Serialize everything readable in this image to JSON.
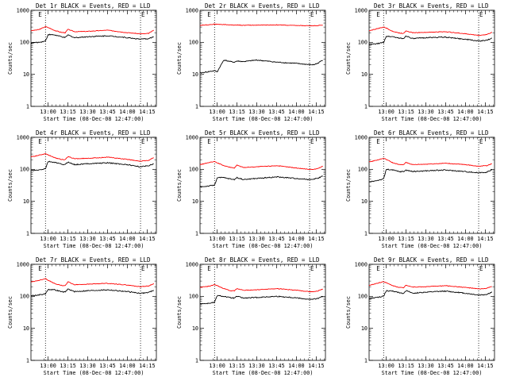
{
  "chart_data": [
    {
      "type": "line",
      "title": "Det 1r BLACK = Events, RED = LLD",
      "xlabel": "Start Time (08-Dec-08 12:47:00)",
      "ylabel": "Counts/sec",
      "yscale": "log",
      "ylim": [
        1,
        1000
      ],
      "xticks": [
        "13:00",
        "13:15",
        "13:30",
        "13:45",
        "14:00",
        "14:15"
      ],
      "yticks": [
        "1",
        "10",
        "100",
        "1000"
      ],
      "markers": [
        "E",
        "E"
      ],
      "x": [
        "12:47",
        "12:53",
        "12:58",
        "13:00",
        "13:05",
        "13:10",
        "13:13",
        "13:15",
        "13:20",
        "13:30",
        "13:45",
        "14:00",
        "14:10",
        "14:13",
        "14:16",
        "14:20"
      ],
      "series": [
        {
          "color": "#ff0000",
          "values": [
            230,
            250,
            310,
            290,
            235,
            205,
            200,
            255,
            215,
            220,
            240,
            200,
            185,
            185,
            190,
            240
          ]
        },
        {
          "color": "#000000",
          "values": [
            95,
            100,
            110,
            175,
            170,
            150,
            140,
            170,
            140,
            150,
            160,
            140,
            125,
            128,
            130,
            150
          ]
        }
      ]
    },
    {
      "type": "line",
      "title": "Det 2r BLACK = Events, RED = LLD",
      "xlabel": "Start Time (08-Dec-08 12:47:00)",
      "ylabel": "Counts/sec",
      "yscale": "log",
      "ylim": [
        1,
        1000
      ],
      "xticks": [
        "13:00",
        "13:15",
        "13:30",
        "13:45",
        "14:00",
        "14:15"
      ],
      "yticks": [
        "1",
        "10",
        "100",
        "1000"
      ],
      "markers": [
        "E",
        "E"
      ],
      "x": [
        "12:47",
        "12:53",
        "12:58",
        "13:00",
        "13:05",
        "13:10",
        "13:13",
        "13:15",
        "13:20",
        "13:30",
        "13:45",
        "14:00",
        "14:10",
        "14:13",
        "14:16",
        "14:20"
      ],
      "series": [
        {
          "color": "#ff0000",
          "values": [
            340,
            355,
            370,
            365,
            360,
            350,
            345,
            350,
            340,
            345,
            350,
            335,
            330,
            330,
            335,
            345
          ]
        },
        {
          "color": "#000000",
          "values": [
            11,
            12,
            13,
            12,
            28,
            25,
            24,
            26,
            25,
            28,
            24,
            22,
            20,
            20,
            22,
            28
          ]
        }
      ]
    },
    {
      "type": "line",
      "title": "Det 3r BLACK = Events, RED = LLD",
      "xlabel": "Start Time (08-Dec-08 12:47:00)",
      "ylabel": "Counts/sec",
      "yscale": "log",
      "ylim": [
        1,
        1000
      ],
      "xticks": [
        "13:00",
        "13:15",
        "13:30",
        "13:45",
        "14:00",
        "14:15"
      ],
      "yticks": [
        "1",
        "10",
        "100",
        "1000"
      ],
      "markers": [
        "E",
        "E"
      ],
      "x": [
        "12:47",
        "12:53",
        "12:58",
        "13:00",
        "13:05",
        "13:10",
        "13:13",
        "13:15",
        "13:20",
        "13:30",
        "13:45",
        "14:00",
        "14:10",
        "14:13",
        "14:16",
        "14:20"
      ],
      "series": [
        {
          "color": "#ff0000",
          "values": [
            230,
            265,
            300,
            280,
            220,
            195,
            190,
            230,
            200,
            205,
            215,
            185,
            165,
            170,
            175,
            205
          ]
        },
        {
          "color": "#000000",
          "values": [
            85,
            90,
            100,
            155,
            150,
            135,
            130,
            160,
            130,
            140,
            145,
            125,
            110,
            112,
            115,
            135
          ]
        }
      ]
    },
    {
      "type": "line",
      "title": "Det 4r BLACK = Events, RED = LLD",
      "xlabel": "Start Time (08-Dec-08 12:47:00)",
      "ylabel": "Counts/sec",
      "yscale": "log",
      "ylim": [
        1,
        1000
      ],
      "xticks": [
        "13:00",
        "13:15",
        "13:30",
        "13:45",
        "14:00",
        "14:15"
      ],
      "yticks": [
        "1",
        "10",
        "100",
        "1000"
      ],
      "markers": [
        "E",
        "E"
      ],
      "x": [
        "12:47",
        "12:53",
        "12:58",
        "13:00",
        "13:05",
        "13:10",
        "13:13",
        "13:15",
        "13:20",
        "13:30",
        "13:45",
        "14:00",
        "14:10",
        "14:13",
        "14:16",
        "14:20"
      ],
      "series": [
        {
          "color": "#ff0000",
          "values": [
            245,
            275,
            310,
            285,
            230,
            205,
            200,
            250,
            215,
            220,
            240,
            205,
            180,
            185,
            190,
            230
          ]
        },
        {
          "color": "#000000",
          "values": [
            90,
            95,
            105,
            175,
            165,
            145,
            140,
            170,
            140,
            150,
            160,
            140,
            120,
            125,
            130,
            150
          ]
        }
      ]
    },
    {
      "type": "line",
      "title": "Det 5r BLACK = Events, RED = LLD",
      "xlabel": "Start Time (08-Dec-08 12:47:00)",
      "ylabel": "Counts/sec",
      "yscale": "log",
      "ylim": [
        1,
        1000
      ],
      "xticks": [
        "13:00",
        "13:15",
        "13:30",
        "13:45",
        "14:00",
        "14:15"
      ],
      "yticks": [
        "1",
        "10",
        "100",
        "1000"
      ],
      "markers": [
        "E",
        "E"
      ],
      "x": [
        "12:47",
        "12:53",
        "12:58",
        "13:00",
        "13:05",
        "13:10",
        "13:13",
        "13:15",
        "13:20",
        "13:30",
        "13:45",
        "14:00",
        "14:10",
        "14:13",
        "14:16",
        "14:20"
      ],
      "series": [
        {
          "color": "#ff0000",
          "values": [
            140,
            160,
            175,
            160,
            130,
            115,
            110,
            135,
            115,
            120,
            130,
            110,
            100,
            100,
            105,
            125
          ]
        },
        {
          "color": "#000000",
          "values": [
            28,
            30,
            32,
            55,
            55,
            50,
            48,
            55,
            48,
            52,
            58,
            52,
            48,
            50,
            52,
            62
          ]
        }
      ]
    },
    {
      "type": "line",
      "title": "Det 6r BLACK = Events, RED = LLD",
      "xlabel": "Start Time (08-Dec-08 12:47:00)",
      "ylabel": "Counts/sec",
      "yscale": "log",
      "ylim": [
        1,
        1000
      ],
      "xticks": [
        "13:00",
        "13:15",
        "13:30",
        "13:45",
        "14:00",
        "14:15"
      ],
      "yticks": [
        "1",
        "10",
        "100",
        "1000"
      ],
      "markers": [
        "E",
        "E"
      ],
      "x": [
        "12:47",
        "12:53",
        "12:58",
        "13:00",
        "13:05",
        "13:10",
        "13:13",
        "13:15",
        "13:20",
        "13:30",
        "13:45",
        "14:00",
        "14:10",
        "14:13",
        "14:16",
        "14:20"
      ],
      "series": [
        {
          "color": "#ff0000",
          "values": [
            170,
            195,
            220,
            205,
            160,
            140,
            140,
            165,
            140,
            145,
            155,
            140,
            125,
            128,
            130,
            150
          ]
        },
        {
          "color": "#000000",
          "values": [
            40,
            45,
            50,
            100,
            95,
            85,
            85,
            95,
            85,
            90,
            95,
            85,
            78,
            80,
            82,
            95
          ]
        }
      ]
    },
    {
      "type": "line",
      "title": "Det 7r BLACK = Events, RED = LLD",
      "xlabel": "Start Time (08-Dec-08 12:47:00)",
      "ylabel": "Counts/sec",
      "yscale": "log",
      "ylim": [
        1,
        1000
      ],
      "xticks": [
        "13:00",
        "13:15",
        "13:30",
        "13:45",
        "14:00",
        "14:15"
      ],
      "yticks": [
        "1",
        "10",
        "100",
        "1000"
      ],
      "markers": [
        "E",
        "E"
      ],
      "x": [
        "12:47",
        "12:53",
        "12:58",
        "13:00",
        "13:05",
        "13:10",
        "13:13",
        "13:15",
        "13:20",
        "13:30",
        "13:45",
        "14:00",
        "14:10",
        "14:13",
        "14:16",
        "14:20"
      ],
      "series": [
        {
          "color": "#ff0000",
          "values": [
            280,
            315,
            360,
            320,
            250,
            220,
            215,
            285,
            230,
            240,
            255,
            225,
            200,
            205,
            210,
            250
          ]
        },
        {
          "color": "#000000",
          "values": [
            105,
            110,
            120,
            165,
            160,
            140,
            135,
            170,
            140,
            150,
            160,
            140,
            125,
            128,
            132,
            155
          ]
        }
      ]
    },
    {
      "type": "line",
      "title": "Det 8r BLACK = Events, RED = LLD",
      "xlabel": "Start Time (08-Dec-08 12:47:00)",
      "ylabel": "Counts/sec",
      "yscale": "log",
      "ylim": [
        1,
        1000
      ],
      "xticks": [
        "13:00",
        "13:15",
        "13:30",
        "13:45",
        "14:00",
        "14:15"
      ],
      "yticks": [
        "1",
        "10",
        "100",
        "1000"
      ],
      "markers": [
        "E",
        "E"
      ],
      "x": [
        "12:47",
        "12:53",
        "12:58",
        "13:00",
        "13:05",
        "13:10",
        "13:13",
        "13:15",
        "13:20",
        "13:30",
        "13:45",
        "14:00",
        "14:10",
        "14:13",
        "14:16",
        "14:20"
      ],
      "series": [
        {
          "color": "#ff0000",
          "values": [
            190,
            205,
            230,
            215,
            175,
            150,
            150,
            175,
            155,
            160,
            175,
            155,
            140,
            140,
            145,
            170
          ]
        },
        {
          "color": "#000000",
          "values": [
            58,
            60,
            65,
            105,
            100,
            90,
            88,
            100,
            88,
            92,
            100,
            90,
            80,
            82,
            85,
            100
          ]
        }
      ]
    },
    {
      "type": "line",
      "title": "Det 9r BLACK = Events, RED = LLD",
      "xlabel": "Start Time (08-Dec-08 12:47:00)",
      "ylabel": "Counts/sec",
      "yscale": "log",
      "ylim": [
        1,
        1000
      ],
      "xticks": [
        "13:00",
        "13:15",
        "13:30",
        "13:45",
        "14:00",
        "14:15"
      ],
      "yticks": [
        "1",
        "10",
        "100",
        "1000"
      ],
      "markers": [
        "E",
        "E"
      ],
      "x": [
        "12:47",
        "12:53",
        "12:58",
        "13:00",
        "13:05",
        "13:10",
        "13:13",
        "13:15",
        "13:20",
        "13:30",
        "13:45",
        "14:00",
        "14:10",
        "14:13",
        "14:16",
        "14:20"
      ],
      "series": [
        {
          "color": "#ff0000",
          "values": [
            220,
            255,
            290,
            265,
            215,
            190,
            185,
            225,
            195,
            200,
            215,
            190,
            170,
            172,
            178,
            205
          ]
        },
        {
          "color": "#000000",
          "values": [
            85,
            92,
            100,
            150,
            145,
            130,
            125,
            150,
            125,
            135,
            145,
            125,
            110,
            112,
            115,
            135
          ]
        }
      ]
    }
  ]
}
